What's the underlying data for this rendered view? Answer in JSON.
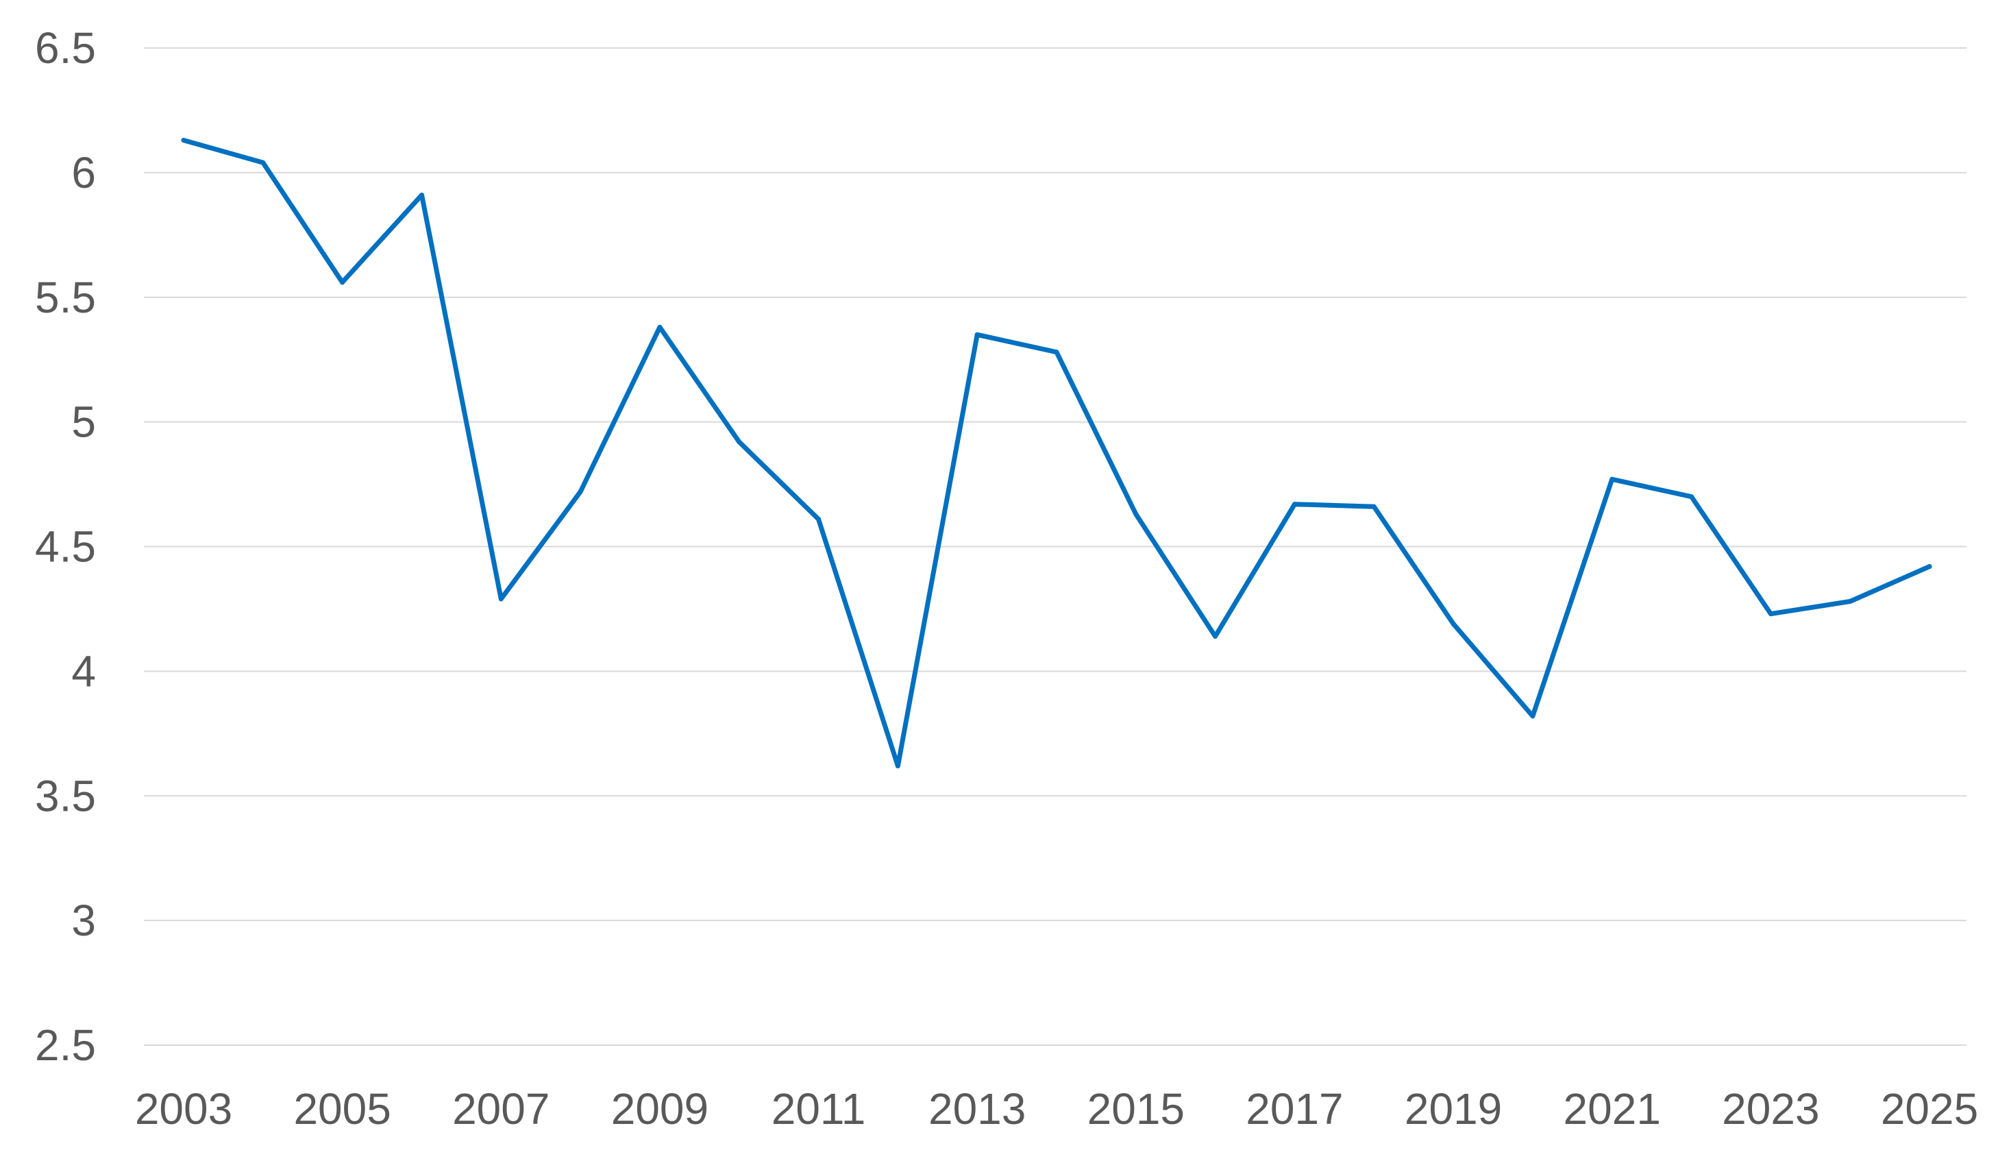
{
  "chart_data": {
    "type": "line",
    "x": [
      2003,
      2004,
      2005,
      2006,
      2007,
      2008,
      2009,
      2010,
      2011,
      2012,
      2013,
      2014,
      2015,
      2016,
      2017,
      2018,
      2019,
      2020,
      2021,
      2022,
      2023,
      2024,
      2025
    ],
    "x_tick_labels": [
      "2003",
      "2005",
      "2007",
      "2009",
      "2011",
      "2013",
      "2015",
      "2017",
      "2019",
      "2021",
      "2023",
      "2025"
    ],
    "y_tick_labels": [
      "6.5",
      "6",
      "5.5",
      "5",
      "4.5",
      "4",
      "3.5",
      "3",
      "2.5"
    ],
    "y_ticks": [
      6.5,
      6,
      5.5,
      5,
      4.5,
      4,
      3.5,
      3,
      2.5
    ],
    "series": [
      {
        "values": [
          6.13,
          6.04,
          5.56,
          5.91,
          4.29,
          4.72,
          5.38,
          4.92,
          4.61,
          3.62,
          5.35,
          5.28,
          4.63,
          4.14,
          4.67,
          4.66,
          4.19,
          3.82,
          4.77,
          4.7,
          4.23,
          4.28,
          4.42
        ],
        "color": "#0070c0"
      }
    ],
    "title": "",
    "xlabel": "",
    "ylabel": "",
    "ylim": [
      2.5,
      6.5
    ],
    "xlim": [
      2003,
      2025
    ],
    "grid": true,
    "legend": "none"
  }
}
